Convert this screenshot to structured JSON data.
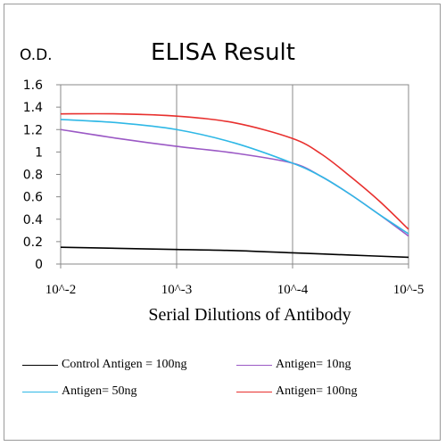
{
  "chart_data": {
    "type": "line",
    "title": "ELISA Result",
    "ylabel": "O.D.",
    "xlabel": "Serial Dilutions  of Antibody",
    "x_tick_labels": [
      "10^-2",
      "10^-3",
      "10^-4",
      "10^-5"
    ],
    "y_ticks": [
      0,
      0.2,
      0.4,
      0.6,
      0.8,
      1,
      1.2,
      1.4,
      1.6
    ],
    "ylim": [
      0,
      1.6
    ],
    "grid": "vertical",
    "legend_position": "bottom",
    "series": [
      {
        "name": "Control Antigen = 100ng",
        "color": "#000000",
        "x": [
          -2,
          -2.5,
          -3,
          -3.5,
          -4,
          -4.5,
          -5
        ],
        "y": [
          0.15,
          0.14,
          0.13,
          0.12,
          0.1,
          0.08,
          0.06
        ]
      },
      {
        "name": "Antigen= 10ng",
        "color": "#9b59c5",
        "x": [
          -2,
          -2.5,
          -3,
          -3.5,
          -4,
          -4.25,
          -4.5,
          -4.75,
          -5
        ],
        "y": [
          1.2,
          1.12,
          1.05,
          0.99,
          0.9,
          0.78,
          0.62,
          0.44,
          0.25
        ]
      },
      {
        "name": "Antigen= 50ng",
        "color": "#2fb8e6",
        "x": [
          -2,
          -2.5,
          -3,
          -3.5,
          -4,
          -4.25,
          -4.5,
          -4.75,
          -5
        ],
        "y": [
          1.29,
          1.26,
          1.2,
          1.08,
          0.9,
          0.78,
          0.62,
          0.44,
          0.27
        ]
      },
      {
        "name": "Antigen= 100ng",
        "color": "#e8302e",
        "x": [
          -2,
          -2.5,
          -3,
          -3.5,
          -4,
          -4.25,
          -4.5,
          -4.75,
          -5
        ],
        "y": [
          1.34,
          1.34,
          1.32,
          1.26,
          1.12,
          0.98,
          0.78,
          0.56,
          0.31
        ]
      }
    ]
  }
}
